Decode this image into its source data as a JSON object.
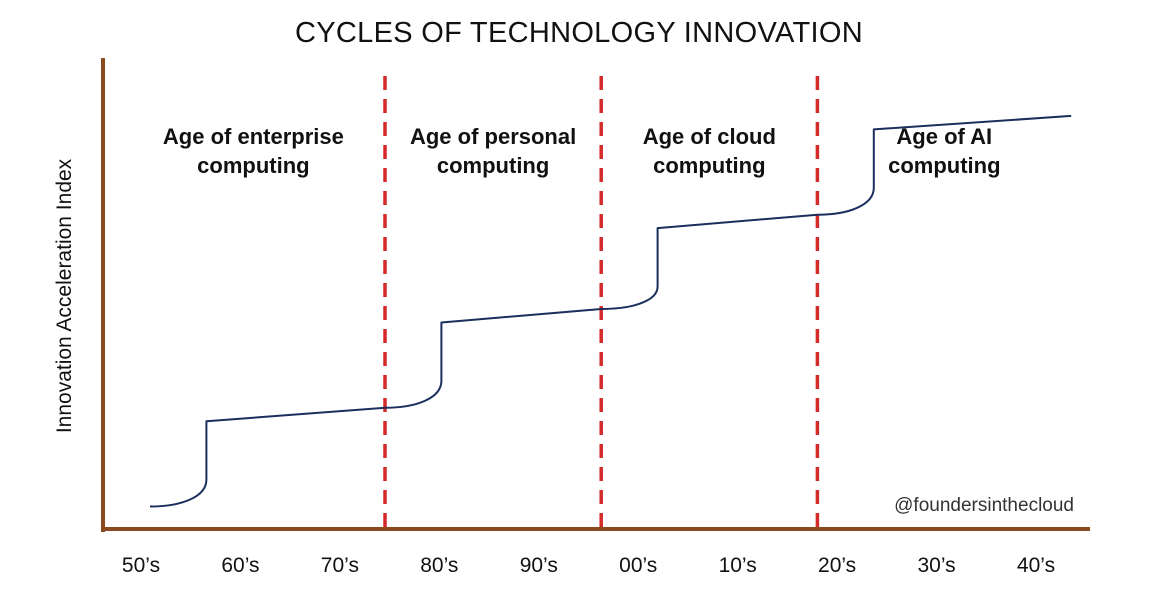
{
  "chart_data": {
    "type": "line",
    "title": "CYCLES OF TECHNOLOGY INNOVATION",
    "ylabel": "Innovation Acceleration Index",
    "xlabel": "",
    "x_ticks": [
      "50’s",
      "60’s",
      "70’s",
      "80’s",
      "90’s",
      "00’s",
      "10’s",
      "20’s",
      "30’s",
      "40’s"
    ],
    "eras": [
      {
        "label_lines": [
          "Age of enterprise",
          "computing"
        ]
      },
      {
        "label_lines": [
          "Age of personal",
          "computing"
        ]
      },
      {
        "label_lines": [
          "Age of cloud",
          "computing"
        ]
      },
      {
        "label_lines": [
          "Age of AI",
          "computing"
        ]
      }
    ],
    "era_dividers": [
      1975,
      1998,
      2021
    ],
    "ylim": [
      0,
      10
    ],
    "x_range": [
      1945,
      2050
    ],
    "series": [
      {
        "segments": [
          {
            "type": "rise",
            "x": [
              1950,
              1956
            ],
            "y": [
              0.5,
              1.1
            ]
          },
          {
            "type": "step",
            "x": 1956,
            "y": [
              1.1,
              2.4
            ]
          },
          {
            "type": "plateau",
            "x": [
              1956,
              1975
            ],
            "y": [
              2.4,
              2.7
            ]
          },
          {
            "type": "rise",
            "x": [
              1975,
              1981
            ],
            "y": [
              2.7,
              3.3
            ]
          },
          {
            "type": "step",
            "x": 1981,
            "y": [
              3.3,
              4.6
            ]
          },
          {
            "type": "plateau",
            "x": [
              1981,
              1998
            ],
            "y": [
              4.6,
              4.9
            ]
          },
          {
            "type": "rise",
            "x": [
              1998,
              2004
            ],
            "y": [
              4.9,
              5.4
            ]
          },
          {
            "type": "step",
            "x": 2004,
            "y": [
              5.4,
              6.7
            ]
          },
          {
            "type": "plateau",
            "x": [
              2004,
              2021
            ],
            "y": [
              6.7,
              7.0
            ]
          },
          {
            "type": "rise",
            "x": [
              2021,
              2027
            ],
            "y": [
              7.0,
              7.6
            ]
          },
          {
            "type": "step",
            "x": 2027,
            "y": [
              7.6,
              8.9
            ]
          },
          {
            "type": "plateau",
            "x": [
              2027,
              2048
            ],
            "y": [
              8.9,
              9.2
            ]
          }
        ]
      }
    ],
    "grid": false,
    "colors": {
      "axis": "#8a4b1f",
      "line": "#1a2f5c",
      "divider": "#d42a2a"
    }
  },
  "watermark": "@foundersinthecloud"
}
